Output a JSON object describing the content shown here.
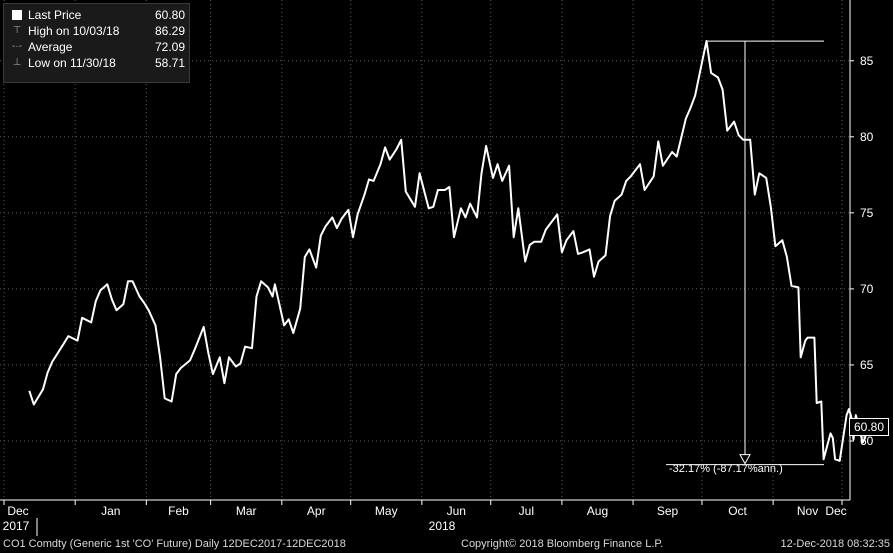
{
  "chart_data": {
    "type": "line",
    "series": [
      {
        "name": "Last Price",
        "color": "#ffffff",
        "points": [
          [
            "2017-12-12",
            63.3
          ],
          [
            "2017-12-14",
            62.4
          ],
          [
            "2017-12-18",
            63.4
          ],
          [
            "2017-12-20",
            64.5
          ],
          [
            "2017-12-22",
            65.2
          ],
          [
            "2017-12-27",
            66.4
          ],
          [
            "2017-12-29",
            66.9
          ],
          [
            "2018-01-02",
            66.6
          ],
          [
            "2018-01-04",
            68.1
          ],
          [
            "2018-01-08",
            67.8
          ],
          [
            "2018-01-10",
            69.2
          ],
          [
            "2018-01-12",
            69.9
          ],
          [
            "2018-01-15",
            70.3
          ],
          [
            "2018-01-17",
            69.3
          ],
          [
            "2018-01-19",
            68.6
          ],
          [
            "2018-01-22",
            69.0
          ],
          [
            "2018-01-24",
            70.5
          ],
          [
            "2018-01-26",
            70.5
          ],
          [
            "2018-01-29",
            69.5
          ],
          [
            "2018-01-31",
            69.1
          ],
          [
            "2018-02-02",
            68.6
          ],
          [
            "2018-02-05",
            67.6
          ],
          [
            "2018-02-07",
            65.5
          ],
          [
            "2018-02-09",
            62.8
          ],
          [
            "2018-02-12",
            62.6
          ],
          [
            "2018-02-14",
            64.4
          ],
          [
            "2018-02-16",
            64.8
          ],
          [
            "2018-02-20",
            65.3
          ],
          [
            "2018-02-22",
            66.0
          ],
          [
            "2018-02-26",
            67.5
          ],
          [
            "2018-02-28",
            65.8
          ],
          [
            "2018-03-02",
            64.4
          ],
          [
            "2018-03-05",
            65.5
          ],
          [
            "2018-03-07",
            63.8
          ],
          [
            "2018-03-09",
            65.5
          ],
          [
            "2018-03-12",
            64.9
          ],
          [
            "2018-03-14",
            65.1
          ],
          [
            "2018-03-16",
            66.2
          ],
          [
            "2018-03-19",
            66.1
          ],
          [
            "2018-03-21",
            69.5
          ],
          [
            "2018-03-23",
            70.5
          ],
          [
            "2018-03-26",
            70.1
          ],
          [
            "2018-03-28",
            69.5
          ],
          [
            "2018-03-29",
            70.3
          ],
          [
            "2018-04-02",
            67.6
          ],
          [
            "2018-04-04",
            68.0
          ],
          [
            "2018-04-06",
            67.1
          ],
          [
            "2018-04-09",
            68.7
          ],
          [
            "2018-04-11",
            72.1
          ],
          [
            "2018-04-13",
            72.6
          ],
          [
            "2018-04-16",
            71.4
          ],
          [
            "2018-04-18",
            73.5
          ],
          [
            "2018-04-20",
            74.1
          ],
          [
            "2018-04-23",
            74.7
          ],
          [
            "2018-04-25",
            74.0
          ],
          [
            "2018-04-27",
            74.6
          ],
          [
            "2018-04-30",
            75.2
          ],
          [
            "2018-05-02",
            73.4
          ],
          [
            "2018-05-04",
            74.9
          ],
          [
            "2018-05-07",
            76.2
          ],
          [
            "2018-05-09",
            77.2
          ],
          [
            "2018-05-11",
            77.1
          ],
          [
            "2018-05-14",
            78.2
          ],
          [
            "2018-05-16",
            79.3
          ],
          [
            "2018-05-18",
            78.5
          ],
          [
            "2018-05-21",
            79.2
          ],
          [
            "2018-05-23",
            79.8
          ],
          [
            "2018-05-25",
            76.4
          ],
          [
            "2018-05-29",
            75.4
          ],
          [
            "2018-05-31",
            77.6
          ],
          [
            "2018-06-04",
            75.3
          ],
          [
            "2018-06-06",
            75.4
          ],
          [
            "2018-06-08",
            76.5
          ],
          [
            "2018-06-11",
            76.5
          ],
          [
            "2018-06-13",
            76.7
          ],
          [
            "2018-06-15",
            73.4
          ],
          [
            "2018-06-18",
            75.3
          ],
          [
            "2018-06-20",
            74.7
          ],
          [
            "2018-06-22",
            75.6
          ],
          [
            "2018-06-25",
            74.7
          ],
          [
            "2018-06-27",
            77.6
          ],
          [
            "2018-06-29",
            79.4
          ],
          [
            "2018-07-02",
            77.3
          ],
          [
            "2018-07-04",
            78.2
          ],
          [
            "2018-07-06",
            77.1
          ],
          [
            "2018-07-09",
            78.1
          ],
          [
            "2018-07-11",
            73.4
          ],
          [
            "2018-07-13",
            75.3
          ],
          [
            "2018-07-16",
            71.8
          ],
          [
            "2018-07-18",
            72.9
          ],
          [
            "2018-07-20",
            73.1
          ],
          [
            "2018-07-23",
            73.1
          ],
          [
            "2018-07-25",
            73.9
          ],
          [
            "2018-07-27",
            74.3
          ],
          [
            "2018-07-30",
            74.9
          ],
          [
            "2018-08-01",
            72.4
          ],
          [
            "2018-08-03",
            73.2
          ],
          [
            "2018-08-06",
            73.8
          ],
          [
            "2018-08-08",
            72.3
          ],
          [
            "2018-08-10",
            72.4
          ],
          [
            "2018-08-13",
            72.6
          ],
          [
            "2018-08-15",
            70.8
          ],
          [
            "2018-08-17",
            71.8
          ],
          [
            "2018-08-20",
            72.2
          ],
          [
            "2018-08-22",
            74.8
          ],
          [
            "2018-08-24",
            75.8
          ],
          [
            "2018-08-27",
            76.2
          ],
          [
            "2018-08-29",
            77.1
          ],
          [
            "2018-08-31",
            77.4
          ],
          [
            "2018-09-04",
            78.2
          ],
          [
            "2018-09-06",
            76.5
          ],
          [
            "2018-09-10",
            77.4
          ],
          [
            "2018-09-12",
            79.7
          ],
          [
            "2018-09-14",
            78.1
          ],
          [
            "2018-09-18",
            79.0
          ],
          [
            "2018-09-20",
            78.7
          ],
          [
            "2018-09-24",
            81.2
          ],
          [
            "2018-09-26",
            81.9
          ],
          [
            "2018-09-28",
            82.7
          ],
          [
            "2018-10-01",
            84.9
          ],
          [
            "2018-10-03",
            86.3
          ],
          [
            "2018-10-05",
            84.2
          ],
          [
            "2018-10-08",
            83.9
          ],
          [
            "2018-10-10",
            83.1
          ],
          [
            "2018-10-12",
            80.4
          ],
          [
            "2018-10-15",
            81.0
          ],
          [
            "2018-10-17",
            80.1
          ],
          [
            "2018-10-19",
            79.8
          ],
          [
            "2018-10-22",
            79.8
          ],
          [
            "2018-10-24",
            76.2
          ],
          [
            "2018-10-26",
            77.6
          ],
          [
            "2018-10-29",
            77.3
          ],
          [
            "2018-10-31",
            75.4
          ],
          [
            "2018-11-02",
            72.8
          ],
          [
            "2018-11-05",
            73.2
          ],
          [
            "2018-11-07",
            72.1
          ],
          [
            "2018-11-09",
            70.2
          ],
          [
            "2018-11-12",
            70.1
          ],
          [
            "2018-11-13",
            65.5
          ],
          [
            "2018-11-15",
            66.6
          ],
          [
            "2018-11-16",
            66.8
          ],
          [
            "2018-11-19",
            66.8
          ],
          [
            "2018-11-20",
            62.5
          ],
          [
            "2018-11-22",
            62.6
          ],
          [
            "2018-11-23",
            58.8
          ],
          [
            "2018-11-26",
            60.5
          ],
          [
            "2018-11-27",
            60.2
          ],
          [
            "2018-11-28",
            58.8
          ],
          [
            "2018-11-30",
            58.7
          ],
          [
            "2018-12-03",
            61.7
          ],
          [
            "2018-12-04",
            62.1
          ],
          [
            "2018-12-05",
            61.6
          ],
          [
            "2018-12-06",
            60.1
          ],
          [
            "2018-12-07",
            61.7
          ],
          [
            "2018-12-10",
            59.9
          ],
          [
            "2018-12-11",
            60.2
          ],
          [
            "2018-12-12",
            60.8
          ]
        ]
      }
    ],
    "x_range": [
      "2017-12-12",
      "2018-12-12"
    ],
    "ylim": [
      56,
      88
    ],
    "yticks": [
      60,
      65,
      70,
      75,
      80,
      85
    ],
    "xticks": [
      {
        "date": "2017-12-01",
        "label": "Dec"
      },
      {
        "date": "2018-01-01",
        "label": "Jan"
      },
      {
        "date": "2018-02-01",
        "label": "Feb"
      },
      {
        "date": "2018-03-01",
        "label": "Mar"
      },
      {
        "date": "2018-04-01",
        "label": "Apr"
      },
      {
        "date": "2018-05-01",
        "label": "May"
      },
      {
        "date": "2018-06-01",
        "label": "Jun"
      },
      {
        "date": "2018-07-01",
        "label": "Jul"
      },
      {
        "date": "2018-08-01",
        "label": "Aug"
      },
      {
        "date": "2018-09-01",
        "label": "Sep"
      },
      {
        "date": "2018-10-01",
        "label": "Oct"
      },
      {
        "date": "2018-11-01",
        "label": "Nov"
      },
      {
        "date": "2018-12-01",
        "label": "Dec"
      }
    ],
    "year_labels": [
      {
        "date": "2017-12-01",
        "label": "2017"
      },
      {
        "date": "2018-06-01",
        "label": "2018"
      }
    ],
    "grid": "vertical and horizontal dotted",
    "legend_position": "top-left",
    "high_marker": {
      "date": "2018-10-03",
      "value": 86.29
    },
    "low_marker": {
      "date": "2018-11-30",
      "value": 58.71
    },
    "last_value": 60.8,
    "last_value_label": "60.80",
    "drawdown_annotation": "-32.17% (-87.17%ann.)"
  },
  "legend": {
    "rows": [
      {
        "label": "Last Price",
        "value": "60.80",
        "icon": "white-square-icon"
      },
      {
        "label": "High on 10/03/18",
        "value": "86.29",
        "icon": "high-marker-icon"
      },
      {
        "label": "Average",
        "value": "72.09",
        "icon": "average-marker-icon"
      },
      {
        "label": "Low on 11/30/18",
        "value": "58.71",
        "icon": "low-marker-icon"
      }
    ]
  },
  "footer": {
    "ticker": "CO1 Comdty (Generic 1st 'CO' Future)  Daily 12DEC2017-12DEC2018",
    "copyright": "Copyright© 2018 Bloomberg Finance L.P.",
    "timestamp": "12-Dec-2018 08:32:35"
  },
  "colors": {
    "background": "#000000",
    "line": "#ffffff",
    "grid": "#5a5a5a"
  }
}
